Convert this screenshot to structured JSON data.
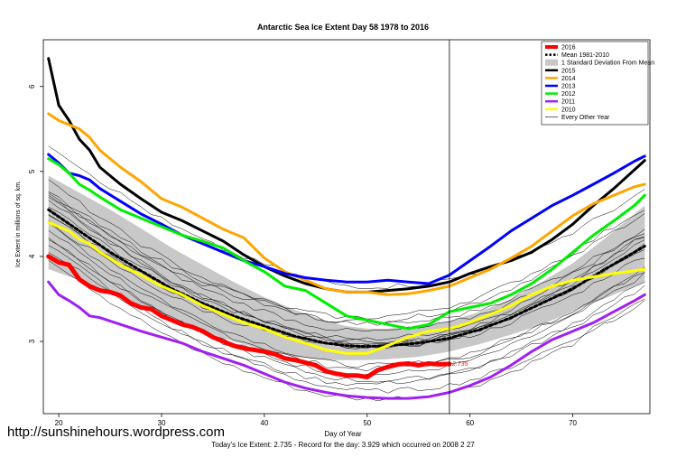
{
  "watermark": "http://sunshinehours.wordpress.com",
  "footer": {
    "left": "Today's Ice Extent: 2.735",
    "sep": " - ",
    "right": "Record for the day: 3.929 which occurred on 2008 2 27"
  },
  "chart_data": {
    "type": "line",
    "title": "Antarctic Sea Ice Extent Day 58 1978 to 2016",
    "xlabel": "Day of Year",
    "ylabel": "Ice Extent in millions of sq. km.",
    "xlim": [
      18.5,
      77.5
    ],
    "ylim": [
      2.15,
      6.55
    ],
    "xticks": [
      20,
      30,
      40,
      50,
      60,
      70
    ],
    "yticks": [
      3,
      4,
      5,
      6
    ],
    "vline_day": 58,
    "current_value_label": "2.735",
    "legend_position": "top-right",
    "band": {
      "name": "1 Standard Deviation From Mean",
      "color": "#c8c8c8",
      "x": [
        19,
        22,
        25,
        28,
        31,
        34,
        37,
        40,
        43,
        46,
        48,
        50,
        52,
        55,
        58,
        61,
        64,
        67,
        70,
        73,
        77
      ],
      "low": [
        3.85,
        3.72,
        3.57,
        3.42,
        3.27,
        3.12,
        3.0,
        2.9,
        2.82,
        2.78,
        2.78,
        2.78,
        2.79,
        2.82,
        2.88,
        2.97,
        3.08,
        3.2,
        3.35,
        3.5,
        3.7
      ],
      "high": [
        4.95,
        4.75,
        4.55,
        4.33,
        4.1,
        3.9,
        3.7,
        3.52,
        3.37,
        3.24,
        3.18,
        3.15,
        3.15,
        3.18,
        3.24,
        3.35,
        3.5,
        3.7,
        3.92,
        4.2,
        4.6
      ]
    },
    "series": [
      {
        "name": "2016",
        "color": "#ff0000",
        "width": 5,
        "x": [
          19,
          20,
          21,
          22,
          23,
          24,
          25,
          26,
          27,
          28,
          29,
          30,
          31,
          32,
          33,
          34,
          35,
          36,
          37,
          38,
          39,
          40,
          41,
          42,
          43,
          44,
          45,
          46,
          47,
          48,
          49,
          50,
          51,
          52,
          53,
          54,
          55,
          56,
          57,
          58
        ],
        "y": [
          4.0,
          3.93,
          3.9,
          3.73,
          3.65,
          3.6,
          3.58,
          3.54,
          3.45,
          3.4,
          3.38,
          3.3,
          3.25,
          3.2,
          3.17,
          3.12,
          3.05,
          3.0,
          2.95,
          2.92,
          2.9,
          2.88,
          2.85,
          2.8,
          2.78,
          2.75,
          2.72,
          2.65,
          2.62,
          2.6,
          2.6,
          2.58,
          2.66,
          2.7,
          2.73,
          2.74,
          2.72,
          2.74,
          2.73,
          2.735
        ]
      },
      {
        "name": "Mean 1981-2010",
        "color": "#000000",
        "width": 3,
        "dash": true,
        "x": [
          19,
          22,
          25,
          28,
          31,
          34,
          37,
          40,
          43,
          46,
          48,
          50,
          52,
          55,
          58,
          61,
          64,
          67,
          70,
          73,
          77
        ],
        "y": [
          4.55,
          4.3,
          4.05,
          3.83,
          3.62,
          3.45,
          3.3,
          3.18,
          3.06,
          2.98,
          2.95,
          2.94,
          2.95,
          2.98,
          3.04,
          3.14,
          3.28,
          3.45,
          3.62,
          3.84,
          4.12
        ]
      },
      {
        "name": "2015",
        "color": "#000000",
        "width": 3,
        "x": [
          19,
          20,
          21,
          22,
          23,
          24,
          26,
          28,
          30,
          32,
          34,
          36,
          38,
          40,
          42,
          44,
          46,
          48,
          50,
          52,
          54,
          56,
          58,
          60,
          62,
          64,
          66,
          68,
          70,
          72,
          74,
          76,
          77
        ],
        "y": [
          6.33,
          5.78,
          5.6,
          5.38,
          5.25,
          5.05,
          4.85,
          4.68,
          4.52,
          4.42,
          4.3,
          4.18,
          4.02,
          3.88,
          3.77,
          3.68,
          3.62,
          3.58,
          3.58,
          3.6,
          3.62,
          3.65,
          3.7,
          3.8,
          3.88,
          3.95,
          4.05,
          4.2,
          4.38,
          4.6,
          4.8,
          5.02,
          5.13
        ]
      },
      {
        "name": "2014",
        "color": "#ffa500",
        "width": 3,
        "x": [
          19,
          20,
          21,
          22,
          23,
          24,
          26,
          28,
          30,
          32,
          34,
          36,
          38,
          40,
          42,
          44,
          46,
          48,
          50,
          52,
          54,
          56,
          58,
          60,
          62,
          64,
          66,
          68,
          70,
          72,
          74,
          76,
          77
        ],
        "y": [
          5.68,
          5.6,
          5.55,
          5.5,
          5.4,
          5.25,
          5.05,
          4.88,
          4.68,
          4.58,
          4.45,
          4.32,
          4.22,
          3.98,
          3.82,
          3.72,
          3.62,
          3.58,
          3.58,
          3.55,
          3.56,
          3.6,
          3.65,
          3.75,
          3.85,
          3.98,
          4.12,
          4.3,
          4.48,
          4.62,
          4.72,
          4.82,
          4.85
        ]
      },
      {
        "name": "2013",
        "color": "#0000ff",
        "width": 3,
        "x": [
          19,
          20,
          21,
          22,
          23,
          24,
          26,
          28,
          30,
          32,
          34,
          36,
          38,
          40,
          42,
          44,
          46,
          48,
          50,
          52,
          54,
          56,
          58,
          60,
          62,
          64,
          66,
          68,
          70,
          72,
          74,
          76,
          77
        ],
        "y": [
          5.2,
          5.1,
          4.98,
          4.95,
          4.9,
          4.8,
          4.65,
          4.5,
          4.38,
          4.25,
          4.15,
          4.05,
          3.95,
          3.88,
          3.8,
          3.75,
          3.72,
          3.7,
          3.7,
          3.72,
          3.7,
          3.68,
          3.78,
          3.95,
          4.12,
          4.3,
          4.45,
          4.6,
          4.72,
          4.85,
          4.98,
          5.12,
          5.18
        ]
      },
      {
        "name": "2012",
        "color": "#00ee00",
        "width": 3,
        "x": [
          19,
          20,
          21,
          22,
          23,
          24,
          26,
          28,
          30,
          32,
          34,
          36,
          38,
          40,
          42,
          44,
          46,
          48,
          50,
          52,
          54,
          56,
          58,
          60,
          62,
          64,
          66,
          68,
          70,
          72,
          74,
          76,
          77
        ],
        "y": [
          5.15,
          5.08,
          4.98,
          4.85,
          4.78,
          4.7,
          4.55,
          4.45,
          4.35,
          4.25,
          4.18,
          4.1,
          3.95,
          3.82,
          3.65,
          3.6,
          3.45,
          3.3,
          3.25,
          3.2,
          3.15,
          3.2,
          3.35,
          3.4,
          3.45,
          3.55,
          3.68,
          3.85,
          4.05,
          4.25,
          4.42,
          4.6,
          4.72
        ]
      },
      {
        "name": "2011",
        "color": "#a020f0",
        "width": 3,
        "x": [
          19,
          20,
          21,
          22,
          23,
          24,
          26,
          28,
          30,
          32,
          34,
          36,
          38,
          40,
          42,
          44,
          46,
          48,
          50,
          52,
          54,
          56,
          58,
          60,
          62,
          64,
          66,
          68,
          70,
          72,
          74,
          76,
          77
        ],
        "y": [
          3.7,
          3.55,
          3.48,
          3.4,
          3.3,
          3.28,
          3.2,
          3.12,
          3.05,
          2.98,
          2.88,
          2.8,
          2.72,
          2.62,
          2.52,
          2.45,
          2.4,
          2.36,
          2.34,
          2.33,
          2.33,
          2.35,
          2.4,
          2.48,
          2.58,
          2.72,
          2.88,
          3.02,
          3.12,
          3.22,
          3.35,
          3.48,
          3.55
        ]
      },
      {
        "name": "2010",
        "color": "#ffff00",
        "width": 3,
        "x": [
          19,
          20,
          21,
          22,
          23,
          24,
          26,
          28,
          30,
          32,
          34,
          36,
          38,
          40,
          42,
          44,
          46,
          48,
          50,
          52,
          54,
          56,
          58,
          60,
          62,
          64,
          66,
          68,
          70,
          72,
          74,
          76,
          77
        ],
        "y": [
          4.4,
          4.35,
          4.3,
          4.2,
          4.15,
          4.05,
          3.9,
          3.78,
          3.65,
          3.55,
          3.42,
          3.32,
          3.22,
          3.15,
          3.05,
          2.98,
          2.9,
          2.86,
          2.86,
          2.95,
          3.05,
          3.12,
          3.15,
          3.22,
          3.32,
          3.42,
          3.55,
          3.65,
          3.72,
          3.76,
          3.8,
          3.83,
          3.85
        ]
      }
    ],
    "legend": [
      {
        "label": "2016",
        "color": "#ff0000",
        "style": "thick"
      },
      {
        "label": "Mean 1981-2010",
        "color": "#000000",
        "style": "dash"
      },
      {
        "label": "1 Standard Deviation From Mean",
        "color": "#c8c8c8",
        "style": "box"
      },
      {
        "label": "2015",
        "color": "#000000",
        "style": "line"
      },
      {
        "label": "2014",
        "color": "#ffa500",
        "style": "line"
      },
      {
        "label": "2013",
        "color": "#0000ff",
        "style": "line"
      },
      {
        "label": "2012",
        "color": "#00ee00",
        "style": "line"
      },
      {
        "label": "2011",
        "color": "#a020f0",
        "style": "line"
      },
      {
        "label": "2010",
        "color": "#ffff00",
        "style": "line"
      },
      {
        "label": "Every Other Year",
        "color": "#000000",
        "style": "thin"
      }
    ]
  }
}
